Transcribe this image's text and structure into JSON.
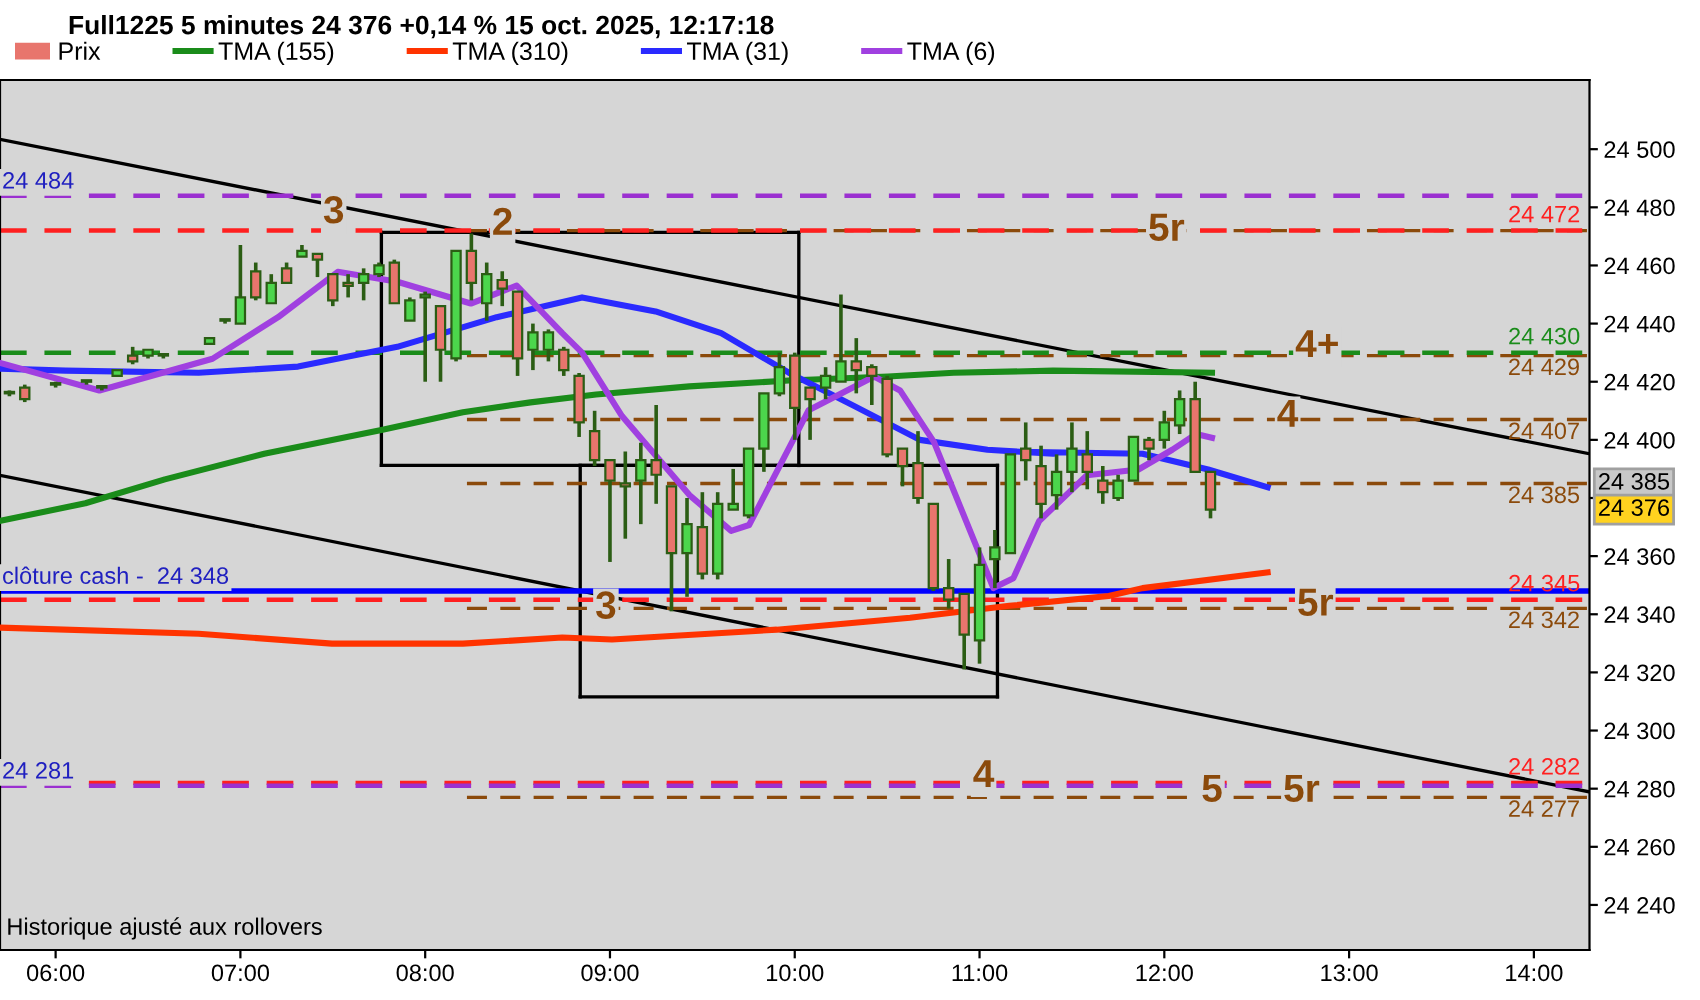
{
  "chart_data": {
    "type": "candlestick",
    "title": "Full1225 5 minutes 24 376 +0,14 % 15 oct. 2025, 12:17:18",
    "xlim": [
      5.699,
      14.301
    ],
    "ylim": [
      24224.5,
      24523.8
    ],
    "xticks": [
      {
        "value": 6,
        "label": "06:00"
      },
      {
        "value": 7,
        "label": "07:00"
      },
      {
        "value": 8,
        "label": "08:00"
      },
      {
        "value": 9,
        "label": "09:00"
      },
      {
        "value": 10,
        "label": "10:00"
      },
      {
        "value": 11,
        "label": "11:00"
      },
      {
        "value": 12,
        "label": "12:00"
      },
      {
        "value": 13,
        "label": "13:00"
      },
      {
        "value": 14,
        "label": "14:00"
      }
    ],
    "yticks": [
      {
        "value": 24240,
        "label": "24 240"
      },
      {
        "value": 24260,
        "label": "24 260"
      },
      {
        "value": 24280,
        "label": "24 280"
      },
      {
        "value": 24300,
        "label": "24 300"
      },
      {
        "value": 24320,
        "label": "24 320"
      },
      {
        "value": 24340,
        "label": "24 340"
      },
      {
        "value": 24360,
        "label": "24 360"
      },
      {
        "value": 24380,
        "label": null
      },
      {
        "value": 24400,
        "label": "24 400"
      },
      {
        "value": 24420,
        "label": "24 420"
      },
      {
        "value": 24440,
        "label": "24 440"
      },
      {
        "value": 24460,
        "label": "24 460"
      },
      {
        "value": 24480,
        "label": "24 480"
      },
      {
        "value": 24500,
        "label": "24 500"
      }
    ],
    "grid": false,
    "legend": "top left",
    "series": [
      {
        "name": "Prix",
        "x": [
          5.75,
          5.833,
          6,
          6.167,
          6.25,
          6.333,
          6.417,
          6.5,
          6.583,
          6.833,
          6.917,
          7,
          7.083,
          7.167,
          7.25,
          7.333,
          7.417,
          7.5,
          7.583,
          7.667,
          7.75,
          7.833,
          7.917,
          8,
          8.083,
          8.167,
          8.25,
          8.333,
          8.417,
          8.5,
          8.583,
          8.667,
          8.75,
          8.833,
          8.917,
          9,
          9.083,
          9.167,
          9.25,
          9.333,
          9.417,
          9.5,
          9.583,
          9.667,
          9.75,
          9.833,
          9.917,
          10,
          10.083,
          10.167,
          10.25,
          10.333,
          10.417,
          10.5,
          10.583,
          10.667,
          10.75,
          10.833,
          10.917,
          11,
          11.083,
          11.167,
          11.25,
          11.333,
          11.417,
          11.5,
          11.583,
          11.667,
          11.75,
          11.833,
          11.917,
          12,
          12.083,
          12.167,
          12.25
        ],
        "ohlc": [
          [
            24416,
            24417,
            24415,
            24416
          ],
          [
            24418,
            24419,
            24413,
            24414
          ],
          [
            24419,
            24420,
            24418,
            24419
          ],
          [
            24420,
            24420,
            24419,
            24420
          ],
          [
            24418,
            24418,
            24417,
            24418
          ],
          [
            24422,
            24424,
            24422,
            24424
          ],
          [
            24429,
            24432,
            24426,
            24427
          ],
          [
            24429,
            24431,
            24428,
            24431
          ],
          [
            24429,
            24429,
            24428,
            24429
          ],
          [
            24433,
            24435,
            24433,
            24435
          ],
          [
            24441,
            24441,
            24440,
            24441
          ],
          [
            24440,
            24467,
            24440,
            24449
          ],
          [
            24458,
            24461,
            24448,
            24449
          ],
          [
            24447,
            24457,
            24447,
            24454
          ],
          [
            24459,
            24461,
            24454,
            24454
          ],
          [
            24463,
            24467,
            24463,
            24465
          ],
          [
            24464,
            24464,
            24456,
            24462
          ],
          [
            24457,
            24457,
            24446,
            24448
          ],
          [
            24454,
            24457,
            24449,
            24453
          ],
          [
            24454,
            24459,
            24448,
            24457
          ],
          [
            24457,
            24461,
            24456,
            24460
          ],
          [
            24461,
            24462,
            24447,
            24447
          ],
          [
            24441,
            24449,
            24441,
            24448
          ],
          [
            24449,
            24451,
            24420,
            24450
          ],
          [
            24446,
            24446,
            24420,
            24431
          ],
          [
            24428,
            24465,
            24427,
            24465
          ],
          [
            24465,
            24471,
            24448,
            24454
          ],
          [
            24447,
            24461,
            24441,
            24457
          ],
          [
            24455,
            24458,
            24446,
            24452
          ],
          [
            24451,
            24451,
            24422,
            24428
          ],
          [
            24431,
            24440,
            24424,
            24437
          ],
          [
            24431,
            24438,
            24427,
            24437
          ],
          [
            24431,
            24432,
            24422,
            24424
          ],
          [
            24422,
            24423,
            24401,
            24406
          ],
          [
            24403,
            24410,
            24391,
            24393
          ],
          [
            24393,
            24393,
            24358,
            24386
          ],
          [
            24385,
            24396,
            24366,
            24384
          ],
          [
            24386,
            24399,
            24371,
            24393
          ],
          [
            24393,
            24412,
            24378,
            24388
          ],
          [
            24384,
            24384,
            24341,
            24361
          ],
          [
            24361,
            24380,
            24346,
            24371
          ],
          [
            24370,
            24382,
            24352,
            24354
          ],
          [
            24354,
            24382,
            24352,
            24378
          ],
          [
            24376,
            24390,
            24376,
            24378
          ],
          [
            24374,
            24397,
            24373,
            24397
          ],
          [
            24397,
            24416,
            24389,
            24416
          ],
          [
            24416,
            24430,
            24415,
            24425
          ],
          [
            24429,
            24430,
            24400,
            24411
          ],
          [
            24418,
            24418,
            24400,
            24414
          ],
          [
            24418,
            24425,
            24414,
            24422
          ],
          [
            24420,
            24450,
            24420,
            24427
          ],
          [
            24427,
            24435,
            24416,
            24424
          ],
          [
            24425,
            24426,
            24412,
            24422
          ],
          [
            24421,
            24422,
            24394,
            24395
          ],
          [
            24397,
            24397,
            24384,
            24391
          ],
          [
            24392,
            24403,
            24378,
            24380
          ],
          [
            24378,
            24378,
            24348,
            24349
          ],
          [
            24349,
            24359,
            24342,
            24345
          ],
          [
            24347,
            24347,
            24321,
            24333
          ],
          [
            24331,
            24363,
            24323,
            24357
          ],
          [
            24359,
            24369,
            24349,
            24363
          ],
          [
            24361,
            24395,
            24361,
            24395
          ],
          [
            24397,
            24406,
            24386,
            24393
          ],
          [
            24391,
            24398,
            24373,
            24378
          ],
          [
            24381,
            24395,
            24376,
            24389
          ],
          [
            24389,
            24406,
            24382,
            24397
          ],
          [
            24395,
            24403,
            24383,
            24389
          ],
          [
            24386,
            24391,
            24378,
            24382
          ],
          [
            24380,
            24388,
            24379,
            24386
          ],
          [
            24386,
            24401,
            24386,
            24401
          ],
          [
            24400,
            24401,
            24393,
            24397
          ],
          [
            24400,
            24410,
            24397,
            24406
          ],
          [
            24405,
            24417,
            24402,
            24414
          ],
          [
            24414,
            24420,
            24389,
            24389
          ],
          [
            24389,
            24389,
            24373,
            24376
          ]
        ],
        "colors": [
          "#4cd64c",
          "#e8756d",
          "#4cd64c",
          "#4cd64c",
          "#4cd64c",
          "#4cd64c",
          "#e8756d",
          "#4cd64c",
          "#4cd64c",
          "#4cd64c",
          "#4cd64c",
          "#4cd64c",
          "#e8756d",
          "#4cd64c",
          "#e8756d",
          "#4cd64c",
          "#e8756d",
          "#e8756d",
          "#e8756d",
          "#4cd64c",
          "#4cd64c",
          "#e8756d",
          "#4cd64c",
          "#4cd64c",
          "#e8756d",
          "#4cd64c",
          "#e8756d",
          "#4cd64c",
          "#e8756d",
          "#e8756d",
          "#4cd64c",
          "#4cd64c",
          "#e8756d",
          "#e8756d",
          "#e8756d",
          "#e8756d",
          "#e8756d",
          "#4cd64c",
          "#e8756d",
          "#e8756d",
          "#4cd64c",
          "#e8756d",
          "#4cd64c",
          "#4cd64c",
          "#4cd64c",
          "#4cd64c",
          "#4cd64c",
          "#e8756d",
          "#e8756d",
          "#4cd64c",
          "#4cd64c",
          "#e8756d",
          "#e8756d",
          "#e8756d",
          "#e8756d",
          "#e8756d",
          "#e8756d",
          "#e8756d",
          "#e8756d",
          "#4cd64c",
          "#4cd64c",
          "#4cd64c",
          "#e8756d",
          "#e8756d",
          "#4cd64c",
          "#4cd64c",
          "#e8756d",
          "#e8756d",
          "#4cd64c",
          "#4cd64c",
          "#e8756d",
          "#4cd64c",
          "#4cd64c",
          "#e8756d",
          "#e8756d"
        ]
      },
      {
        "name": "TMA (155)",
        "type": "line",
        "color": "#1a8c1a",
        "x": [
          5.699,
          6.161,
          6.591,
          7.129,
          7.763,
          8.204,
          8.57,
          8.925,
          9.43,
          9.968,
          10.505,
          10.86,
          11.398,
          12.258
        ],
        "values": [
          24372.1,
          24378.2,
          24386.4,
          24395.2,
          24403.4,
          24409.5,
          24412.9,
          24415.6,
          24418.4,
          24420.4,
          24421.8,
          24423.1,
          24423.8,
          24423.1
        ]
      },
      {
        "name": "TMA (310)",
        "type": "line",
        "color": "#ff3300",
        "x": [
          5.699,
          6.774,
          7.495,
          8.204,
          8.742,
          9.011,
          9.903,
          10.624,
          11.161,
          11.699,
          11.882,
          12.559
        ],
        "values": [
          24335.4,
          24333.3,
          24329.9,
          24329.9,
          24332,
          24331.3,
          24334.7,
          24338.8,
          24342.9,
          24346.3,
          24349,
          24354.4
        ]
      },
      {
        "name": "TMA (31)",
        "type": "line",
        "color": "#2a2aff",
        "x": [
          5.699,
          6.054,
          6.774,
          7.312,
          7.849,
          8.387,
          8.849,
          9.247,
          9.602,
          9.968,
          10.323,
          10.677,
          11.043,
          11.398,
          11.215,
          11.882,
          12.237,
          12.559
        ],
        "values": [
          24424.5,
          24423.8,
          24423.1,
          24425.2,
          24432,
          24442.2,
          24449,
          24444.2,
          24436.7,
          24423.1,
          24411.6,
          24400,
          24396.6,
          24395.2,
          24395.9,
          24395.2,
          24389.8,
          24383.7
        ]
      },
      {
        "name": "TMA (6)",
        "type": "line",
        "color": "#a040e0",
        "x": [
          5.699,
          6.237,
          6.849,
          7.204,
          7.527,
          7.849,
          8.247,
          8.495,
          8.742,
          8.849,
          9.065,
          9.43,
          9.656,
          9.753,
          10.075,
          10.43,
          10.57,
          10.753,
          11.075,
          11.183,
          11.323,
          11.581,
          11.86,
          12.043,
          12.172,
          12.258
        ],
        "values": [
          24426.5,
          24417,
          24427.9,
          24442.2,
          24457.8,
          24454.4,
          24446.9,
          24453.1,
          24436.7,
          24430,
          24408.2,
          24381,
          24368.7,
          24370.7,
          24410.2,
          24421.8,
          24417,
          24399.3,
          24349,
          24352.4,
          24372.1,
          24387.8,
          24389.8,
          24396.6,
          24402,
          24400.7
        ]
      },
      {
        "type": "line",
        "color": "#000000",
        "x": [
          5.699,
          14.301
        ],
        "values": [
          24503.4,
          24395.2
        ]
      },
      {
        "type": "line",
        "color": "#000000",
        "x": [
          5.699,
          14.301
        ],
        "values": [
          24387.8,
          24278.9
        ]
      },
      {
        "type": "line",
        "color": "#000000",
        "x": [
          7.763,
          10.022
        ],
        "values": [
          24471.4,
          24471.4
        ]
      },
      {
        "type": "line",
        "color": "#000000",
        "x": [
          7.763,
          10.022
        ],
        "values": [
          24391.2,
          24391.2
        ]
      },
      {
        "type": "line",
        "color": "#000000",
        "x": [
          7.763,
          7.763
        ],
        "values": [
          24391.2,
          24471.4
        ]
      },
      {
        "type": "line",
        "color": "#000000",
        "x": [
          10.022,
          10.022
        ],
        "values": [
          24391.2,
          24471.4
        ]
      },
      {
        "type": "line",
        "color": "#000000",
        "x": [
          8.839,
          11.097
        ],
        "values": [
          24391.2,
          24391.2
        ]
      },
      {
        "type": "line",
        "color": "#000000",
        "x": [
          8.839,
          11.097
        ],
        "values": [
          24311.6,
          24311.6
        ]
      },
      {
        "type": "line",
        "color": "#000000",
        "x": [
          8.839,
          8.839
        ],
        "values": [
          24311.6,
          24391.2
        ]
      },
      {
        "type": "line",
        "color": "#000000",
        "x": [
          11.097,
          11.097
        ],
        "values": [
          24311.6,
          24391.2
        ]
      },
      {
        "type": "line",
        "color": "#8b4a0b",
        "line_style": "dashed",
        "x": [
          8.226,
          14.301
        ],
        "values": [
          24472,
          24472
        ]
      },
      {
        "type": "line",
        "color": "#8b4a0b",
        "line_style": "dashed",
        "x": [
          8.226,
          14.301
        ],
        "values": [
          24429,
          24429
        ]
      },
      {
        "type": "line",
        "color": "#8b4a0b",
        "line_style": "dashed",
        "x": [
          8.226,
          14.301
        ],
        "values": [
          24407,
          24407
        ]
      },
      {
        "type": "line",
        "color": "#8b4a0b",
        "line_style": "dashed",
        "x": [
          8.226,
          14.301
        ],
        "values": [
          24385,
          24385
        ]
      },
      {
        "type": "line",
        "color": "#8b4a0b",
        "line_style": "dashed",
        "x": [
          8.226,
          14.301
        ],
        "values": [
          24342,
          24342
        ]
      },
      {
        "type": "line",
        "color": "#8b4a0b",
        "line_style": "dashed",
        "x": [
          8.226,
          14.301
        ],
        "values": [
          24277,
          24277
        ]
      }
    ],
    "ref_lines": [
      {
        "axis": "y",
        "value": 24484,
        "color": "#9b30d0",
        "line_style": "dashed"
      },
      {
        "axis": "y",
        "value": 24472,
        "label": "24 472",
        "color": "#ff2020",
        "line_style": "dashed"
      },
      {
        "axis": "y",
        "value": 24430,
        "label": "24 430",
        "color": "#1a8c1a",
        "line_style": "dashed"
      },
      {
        "axis": "y",
        "value": 24348,
        "color": "#0000ff",
        "line_style": "solid"
      },
      {
        "axis": "y",
        "value": 24345,
        "label": "24 345",
        "color": "#ff2020",
        "line_style": "dashed"
      },
      {
        "axis": "y",
        "value": 24282,
        "label": "24 282",
        "color": "#ff2020",
        "line_style": "dashed"
      },
      {
        "axis": "y",
        "value": 24281,
        "color": "#9b30d0",
        "line_style": "dashed"
      }
    ],
    "annotations": [
      {
        "text": "24 484",
        "x": 5.71,
        "y": 24484
      },
      {
        "text": "clôture cash -  24 348",
        "x": 5.71,
        "y": 24348
      },
      {
        "text": "24 281",
        "x": 5.71,
        "y": 24281
      },
      {
        "text": "24 429",
        "x": 14.25,
        "y": 24429
      },
      {
        "text": "24 407",
        "x": 14.25,
        "y": 24407
      },
      {
        "text": "24 385",
        "x": 14.25,
        "y": 24385
      },
      {
        "text": "24 342",
        "x": 14.25,
        "y": 24342
      },
      {
        "text": "24 277",
        "x": 14.25,
        "y": 24277
      },
      {
        "text": "24 385",
        "x": 14.35,
        "y": 24385
      },
      "24 376",
      {
        "text": "3",
        "x": 7.505,
        "y": 24478
      },
      {
        "text": "2",
        "x": 8.419,
        "y": 24474
      },
      {
        "text": "5r",
        "x": 12.011,
        "y": 24472
      },
      {
        "text": "4+",
        "x": 12.828,
        "y": 24432
      },
      {
        "text": "4",
        "x": 12.667,
        "y": 24408
      },
      {
        "text": "3",
        "x": 8.978,
        "y": 24342
      },
      {
        "text": "5r",
        "x": 12.817,
        "y": 24343
      },
      {
        "text": "4",
        "x": 11.022,
        "y": 24284
      },
      {
        "text": "5",
        "x": 12.258,
        "y": 24279
      },
      {
        "text": "5r",
        "x": 12.742,
        "y": 24279
      },
      "Historique ajusté aux rollovers"
    ]
  }
}
